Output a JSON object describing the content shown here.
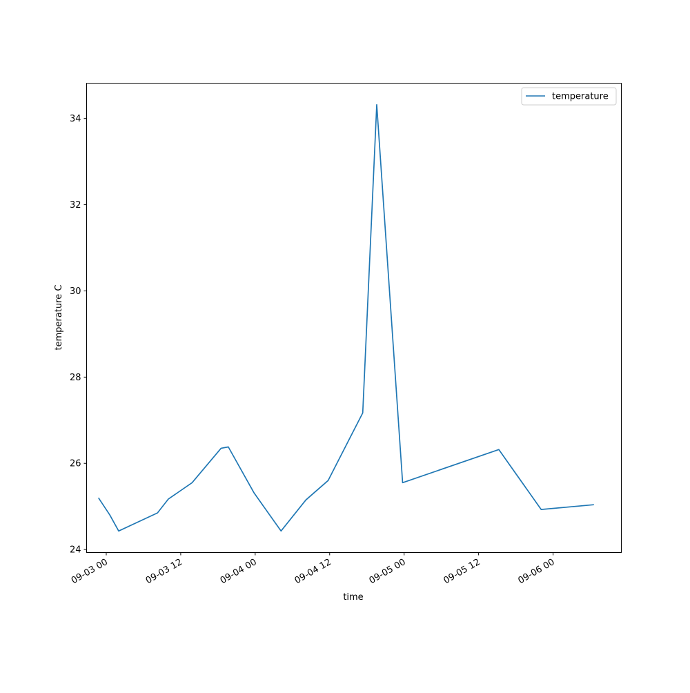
{
  "chart_data": {
    "type": "line",
    "title": "",
    "xlabel": "time",
    "ylabel": "temperature C",
    "x_tick_labels": [
      "09-03 00",
      "09-03 12",
      "09-04 00",
      "09-04 12",
      "09-05 00",
      "09-05 12",
      "09-06 00"
    ],
    "x_ticks": [
      "2021-09-03T00:00",
      "2021-09-03T12:00",
      "2021-09-04T00:00",
      "2021-09-04T12:00",
      "2021-09-05T00:00",
      "2021-09-05T12:00",
      "2021-09-06T00:00"
    ],
    "y_ticks": [
      24,
      26,
      28,
      30,
      32,
      34
    ],
    "ylim": [
      23.93,
      34.82
    ],
    "xlim": [
      "2021-09-02T20:50",
      "2021-09-06T11:00"
    ],
    "grid": false,
    "legend_position": "top-right",
    "series": [
      {
        "name": "temperature",
        "color": "#1f77b4",
        "x": [
          "2021-09-02T22:45",
          "2021-09-03T00:35",
          "2021-09-03T02:00",
          "2021-09-03T08:15",
          "2021-09-03T10:00",
          "2021-09-03T13:50",
          "2021-09-03T18:30",
          "2021-09-03T19:40",
          "2021-09-03T23:50",
          "2021-09-04T04:10",
          "2021-09-04T08:10",
          "2021-09-04T11:45",
          "2021-09-04T17:20",
          "2021-09-04T19:35",
          "2021-09-04T23:45",
          "2021-09-05T15:15",
          "2021-09-05T22:05",
          "2021-09-06T06:35"
        ],
        "y": [
          25.2,
          24.8,
          24.43,
          24.85,
          25.17,
          25.55,
          26.35,
          26.38,
          25.31,
          24.43,
          25.15,
          25.6,
          27.17,
          34.32,
          25.55,
          26.32,
          24.93,
          25.04
        ]
      }
    ]
  }
}
